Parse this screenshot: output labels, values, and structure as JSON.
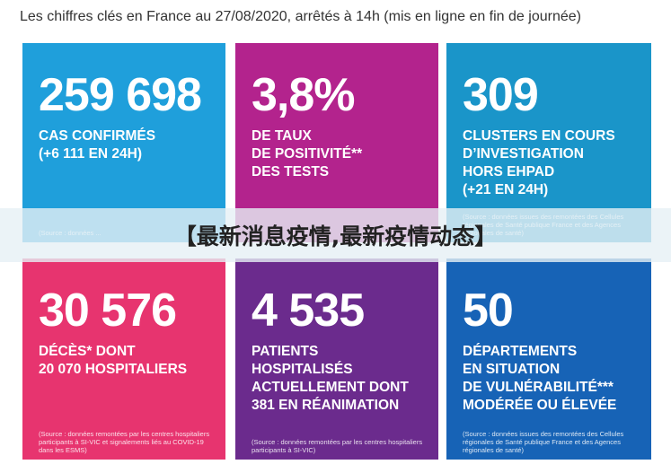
{
  "header": {
    "title": "Les chiffres clés en France au 27/08/2020, arrêtés à 14h (mis en ligne en fin de journée)"
  },
  "banner": {
    "text": "【最新消息疫情,最新疫情动态】"
  },
  "tiles": [
    {
      "number": "259 698",
      "lines": [
        "CAS CONFIRMÉS",
        "(+6 111 EN 24H)"
      ],
      "source": "(Source : données ..."
    },
    {
      "number": "3,8%",
      "lines": [
        "DE TAUX",
        "DE POSITIVITÉ**",
        "DES TESTS"
      ],
      "source": ""
    },
    {
      "number": "309",
      "lines": [
        "CLUSTERS EN COURS",
        "D’INVESTIGATION",
        "HORS EHPAD",
        "(+21 EN 24H)"
      ],
      "source": "(Source : données issues des remontées des Cellules régionales de Santé publique France et des Agences régionales de santé)"
    },
    {
      "number": "30 576",
      "lines": [
        "DÉCÈS* DONT",
        "20 070 HOSPITALIERS"
      ],
      "source": "(Source : données remontées par les centres hospitaliers participants à SI-VIC et signalements liés au COVID-19 dans les ESMS)"
    },
    {
      "number": "4 535",
      "lines": [
        "PATIENTS",
        "HOSPITALISÉS",
        "ACTUELLEMENT DONT",
        "381 EN RÉANIMATION"
      ],
      "source": "(Source : données remontées par les centres hospitaliers participants à SI-VIC)"
    },
    {
      "number": "50",
      "lines": [
        "DÉPARTEMENTS",
        "EN SITUATION",
        "DE VULNÉRABILITÉ***",
        "MODÉRÉE OU ÉLEVÉE"
      ],
      "source": "(Source : données issues des remontées des Cellules régionales de Santé publique France et des Agences régionales de santé)"
    }
  ]
}
